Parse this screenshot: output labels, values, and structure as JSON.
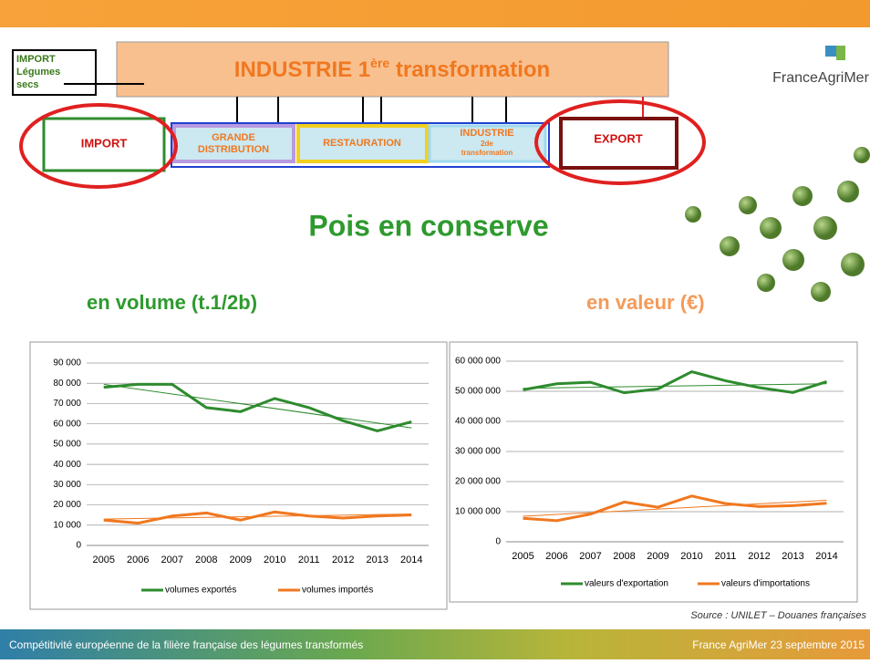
{
  "header": {
    "logo": "FranceAgriMer"
  },
  "diagram": {
    "import_small": [
      "IMPORT",
      "Légumes",
      "secs"
    ],
    "industry": {
      "text": "INDUSTRIE 1",
      "sup": "ère",
      "text2": " transformation"
    },
    "import": "IMPORT",
    "distribution": [
      "GRANDE",
      "DISTRIBUTION"
    ],
    "restauration": "RESTAURATION",
    "industry2": [
      "INDUSTRIE",
      "2de",
      "transformation"
    ],
    "export": "EXPORT"
  },
  "title": "Pois en conserve",
  "subtitle_left": "en volume  (t.1/2b)",
  "subtitle_right": "en valeur (€)",
  "source": "Source : UNILET – Douanes  françaises",
  "footer": {
    "left": "Compétitivité européenne de la filière française des légumes transformés",
    "right": "France AgriMer 23 septembre 2015"
  },
  "chart_data": [
    {
      "type": "line",
      "categories": [
        "2005",
        "2006",
        "2007",
        "2008",
        "2009",
        "2010",
        "2011",
        "2012",
        "2013",
        "2014"
      ],
      "ylim": [
        0,
        90000
      ],
      "yticks": [
        0,
        {
          "value": 10000,
          "label": "10 000"
        },
        {
          "value": 20000,
          "label": "20 000"
        },
        {
          "value": 30000,
          "label": "30 000"
        },
        {
          "value": 40000,
          "label": "40 000"
        },
        {
          "value": 50000,
          "label": "50 000"
        },
        {
          "value": 60000,
          "label": "60 000"
        },
        {
          "value": 70000,
          "label": "70 000"
        },
        {
          "value": 80000,
          "label": "80 000"
        },
        {
          "value": 90000,
          "label": "90 000"
        }
      ],
      "grid": true,
      "legend": "bottom",
      "series": [
        {
          "name": "volumes exportés",
          "color": "#2e8b2e",
          "values": [
            78000,
            79500,
            79500,
            68000,
            66000,
            72500,
            68000,
            61500,
            56500,
            61000
          ],
          "trend": [
            79500,
            58000
          ]
        },
        {
          "name": "volumes importés",
          "color": "#f07820",
          "values": [
            12500,
            11000,
            14500,
            16000,
            12500,
            16500,
            14500,
            13500,
            14500,
            15000
          ],
          "trend": [
            13000,
            15500
          ]
        }
      ]
    },
    {
      "type": "line",
      "categories": [
        "2005",
        "2006",
        "2007",
        "2008",
        "2009",
        "2010",
        "2011",
        "2012",
        "2013",
        "2014"
      ],
      "ylim": [
        0,
        60000000
      ],
      "yticks": [
        0,
        {
          "value": 10000000,
          "label": "10 000 000"
        },
        {
          "value": 20000000,
          "label": "20 000 000"
        },
        {
          "value": 30000000,
          "label": "30 000 000"
        },
        {
          "value": 40000000,
          "label": "40 000 000"
        },
        {
          "value": 50000000,
          "label": "50 000 000"
        },
        {
          "value": 60000000,
          "label": "60 000 000"
        }
      ],
      "grid": true,
      "legend": "bottom",
      "series": [
        {
          "name": "valeurs d'exportation",
          "color": "#2e8b2e",
          "values": [
            50500000,
            52500000,
            53000000,
            49500000,
            50800000,
            56500000,
            53500000,
            51200000,
            49600000,
            53200000
          ],
          "trend": [
            51000000,
            52500000
          ]
        },
        {
          "name": "valeurs d'importations",
          "color": "#f07820",
          "values": [
            7800000,
            7000000,
            9200000,
            13200000,
            11500000,
            15200000,
            12700000,
            11700000,
            12000000,
            12800000
          ],
          "trend": [
            8500000,
            13800000
          ]
        }
      ]
    }
  ]
}
